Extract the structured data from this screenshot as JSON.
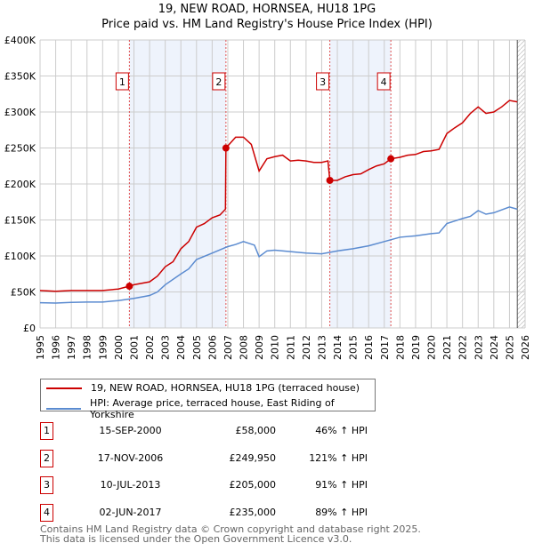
{
  "chart_data": {
    "type": "line",
    "title": "19, NEW ROAD, HORNSEA, HU18 1PG",
    "subtitle": "Price paid vs. HM Land Registry's House Price Index (HPI)",
    "xlim": [
      1995,
      2026
    ],
    "ylim": [
      0,
      400000
    ],
    "xticks": [
      "1995",
      "1996",
      "1997",
      "1998",
      "1999",
      "2000",
      "2001",
      "2002",
      "2003",
      "2004",
      "2005",
      "2006",
      "2007",
      "2008",
      "2009",
      "2010",
      "2011",
      "2012",
      "2013",
      "2014",
      "2015",
      "2016",
      "2017",
      "2018",
      "2019",
      "2020",
      "2021",
      "2022",
      "2023",
      "2024",
      "2025",
      "2026"
    ],
    "yticks": [
      {
        "v": 0,
        "label": "£0"
      },
      {
        "v": 50000,
        "label": "£50K"
      },
      {
        "v": 100000,
        "label": "£100K"
      },
      {
        "v": 150000,
        "label": "£150K"
      },
      {
        "v": 200000,
        "label": "£200K"
      },
      {
        "v": 250000,
        "label": "£250K"
      },
      {
        "v": 300000,
        "label": "£300K"
      },
      {
        "v": 350000,
        "label": "£350K"
      },
      {
        "v": 400000,
        "label": "£400K"
      }
    ],
    "grid": true,
    "shaded_ranges": [
      [
        2000.71,
        2006.88
      ],
      [
        2013.52,
        2017.42
      ]
    ],
    "forecast_from": 2025.5,
    "series": [
      {
        "name": "19, NEW ROAD, HORNSEA, HU18 1PG (terraced house)",
        "color": "#cc0000",
        "x": [
          1995,
          1996,
          1997,
          1998,
          1999,
          2000,
          2000.71,
          2001,
          2002,
          2002.5,
          2003,
          2003.5,
          2004,
          2004.5,
          2005,
          2005.5,
          2006,
          2006.5,
          2006.85,
          2006.88,
          2007.5,
          2008,
          2008.5,
          2009,
          2009.5,
          2010,
          2010.5,
          2011,
          2011.5,
          2012,
          2012.5,
          2013,
          2013.4,
          2013.52,
          2014,
          2014.5,
          2015,
          2015.5,
          2016,
          2016.5,
          2017,
          2017.42,
          2018,
          2018.5,
          2019,
          2019.5,
          2020,
          2020.5,
          2021,
          2021.5,
          2022,
          2022.5,
          2023,
          2023.5,
          2024,
          2024.5,
          2025,
          2025.5
        ],
        "y": [
          52000,
          51000,
          52000,
          52000,
          52000,
          54000,
          58000,
          60000,
          64000,
          72000,
          85000,
          92000,
          110000,
          120000,
          140000,
          145000,
          153000,
          157000,
          165000,
          249950,
          265000,
          265000,
          255000,
          218000,
          235000,
          238000,
          240000,
          232000,
          233000,
          232000,
          230000,
          230000,
          232000,
          205000,
          205000,
          210000,
          213000,
          214000,
          220000,
          225000,
          228000,
          235000,
          237000,
          240000,
          241000,
          245000,
          246000,
          248000,
          270000,
          278000,
          285000,
          298000,
          307000,
          298000,
          300000,
          307000,
          316000,
          314000
        ]
      },
      {
        "name": "HPI: Average price, terraced house, East Riding of Yorkshire",
        "color": "#5b8bd0",
        "x": [
          1995,
          1996,
          1997,
          1998,
          1999,
          2000,
          2001,
          2002,
          2002.5,
          2003,
          2004,
          2004.5,
          2005,
          2006,
          2007,
          2007.5,
          2008,
          2008.7,
          2009,
          2009.5,
          2010,
          2011,
          2012,
          2013,
          2014,
          2015,
          2016,
          2017,
          2018,
          2019,
          2020,
          2020.5,
          2021,
          2022,
          2022.5,
          2023,
          2023.5,
          2024,
          2025,
          2025.5
        ],
        "y": [
          35000,
          34500,
          35500,
          36000,
          36000,
          38000,
          41000,
          45000,
          50000,
          60000,
          75000,
          82000,
          95000,
          104000,
          113000,
          116000,
          120000,
          115000,
          99000,
          107000,
          108000,
          106000,
          104000,
          103000,
          107000,
          110000,
          114000,
          120000,
          126000,
          128000,
          131000,
          132000,
          145000,
          152000,
          155000,
          163000,
          158000,
          160000,
          168000,
          165000
        ]
      }
    ],
    "sales": [
      {
        "n": "1",
        "x": 2000.71,
        "y": 58000,
        "date": "15-SEP-2000",
        "price": "£58,000",
        "hpi": "46% ↑ HPI"
      },
      {
        "n": "2",
        "x": 2006.88,
        "y": 249950,
        "date": "17-NOV-2006",
        "price": "£249,950",
        "hpi": "121% ↑ HPI"
      },
      {
        "n": "3",
        "x": 2013.52,
        "y": 205000,
        "date": "10-JUL-2013",
        "price": "£205,000",
        "hpi": "91% ↑ HPI"
      },
      {
        "n": "4",
        "x": 2017.42,
        "y": 235000,
        "date": "02-JUN-2017",
        "price": "£235,000",
        "hpi": "89% ↑ HPI"
      }
    ]
  },
  "footer": [
    "Contains HM Land Registry data © Crown copyright and database right 2025.",
    "This data is licensed under the Open Government Licence v3.0."
  ]
}
